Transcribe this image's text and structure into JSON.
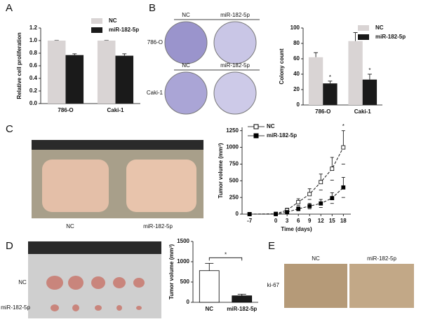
{
  "figure": {
    "panels": [
      "A",
      "B",
      "C",
      "D",
      "E"
    ],
    "b_photo": {
      "columns": [
        "NC",
        "miR-182-5p"
      ],
      "rows": [
        "786-O",
        "Caki-1"
      ]
    },
    "c_photo": {
      "labels": [
        "NC",
        "miR-182-5p"
      ]
    },
    "d_photo": {
      "rows": [
        "NC",
        "miR-182-5p"
      ]
    },
    "e_photo": {
      "columns": [
        "NC",
        "miR-182-5p"
      ],
      "row": "ki-67"
    }
  },
  "chart_data": [
    {
      "type": "bar",
      "ylabel": "Relative cell proliferation",
      "categories": [
        "786-O",
        "Caki-1"
      ],
      "series": [
        {
          "name": "NC",
          "color": "#d9d4d4",
          "values": [
            1.0,
            1.0
          ],
          "errors": [
            0,
            0
          ]
        },
        {
          "name": "miR-182-5p",
          "color": "#1a1a1a",
          "values": [
            0.77,
            0.76
          ],
          "errors": [
            0.02,
            0.03
          ]
        }
      ],
      "ylim": [
        0,
        1.2
      ],
      "yticks": [
        {
          "value": 0,
          "label": "0.0"
        },
        0.2,
        0.4,
        0.6,
        0.8,
        {
          "value": 1,
          "label": "1.0"
        },
        1.2
      ],
      "legend": "top-right",
      "grid": false
    },
    {
      "type": "bar",
      "ylabel": "Colony count",
      "categories": [
        "786-O",
        "Caki-1"
      ],
      "series": [
        {
          "name": "NC",
          "color": "#d9d4d4",
          "values": [
            62,
            83
          ],
          "errors": [
            6,
            11
          ]
        },
        {
          "name": "miR-182-5p",
          "color": "#1a1a1a",
          "values": [
            28,
            33
          ],
          "errors": [
            3,
            7
          ],
          "value_annotations": [
            "*",
            "*"
          ]
        }
      ],
      "ylim": [
        0,
        100
      ],
      "yticks": [
        0,
        20,
        40,
        60,
        80,
        100
      ],
      "legend": "top-right",
      "grid": false
    },
    {
      "type": "line",
      "xlabel": "Time (days)",
      "ylabel": "Tumor volume (mm³)",
      "x": [
        -7,
        0,
        3,
        6,
        9,
        12,
        15,
        18
      ],
      "series": [
        {
          "name": "NC",
          "color": "#1a1a1a",
          "marker": "open-square",
          "values": [
            0,
            5,
            60,
            180,
            300,
            480,
            680,
            1000
          ],
          "errors": [
            0,
            10,
            30,
            50,
            80,
            120,
            170,
            250
          ]
        },
        {
          "name": "miR-182-5p",
          "color": "#1a1a1a",
          "marker": "filled-square",
          "values": [
            0,
            0,
            30,
            80,
            120,
            160,
            240,
            400
          ],
          "errors": [
            0,
            5,
            20,
            30,
            40,
            60,
            80,
            150
          ]
        }
      ],
      "annotation": "*",
      "xlim": [
        -9,
        20
      ],
      "xticks": [
        -7,
        0,
        3,
        6,
        9,
        12,
        15,
        18
      ],
      "ylim": [
        0,
        1300
      ],
      "yticks": [
        0,
        250,
        500,
        750,
        1000,
        1250
      ],
      "legend": "top-left",
      "grid": false
    },
    {
      "type": "bar",
      "ylabel": "Tumor volume (mm³)",
      "categories": [
        "NC",
        "miR-182-5p"
      ],
      "values": [
        780,
        160
      ],
      "errors": [
        180,
        40
      ],
      "colors": [
        "#ffffff",
        "#1a1a1a"
      ],
      "significance": "*",
      "ylim": [
        0,
        1500
      ],
      "yticks": [
        0,
        500,
        1000,
        1500
      ],
      "grid": false
    }
  ]
}
